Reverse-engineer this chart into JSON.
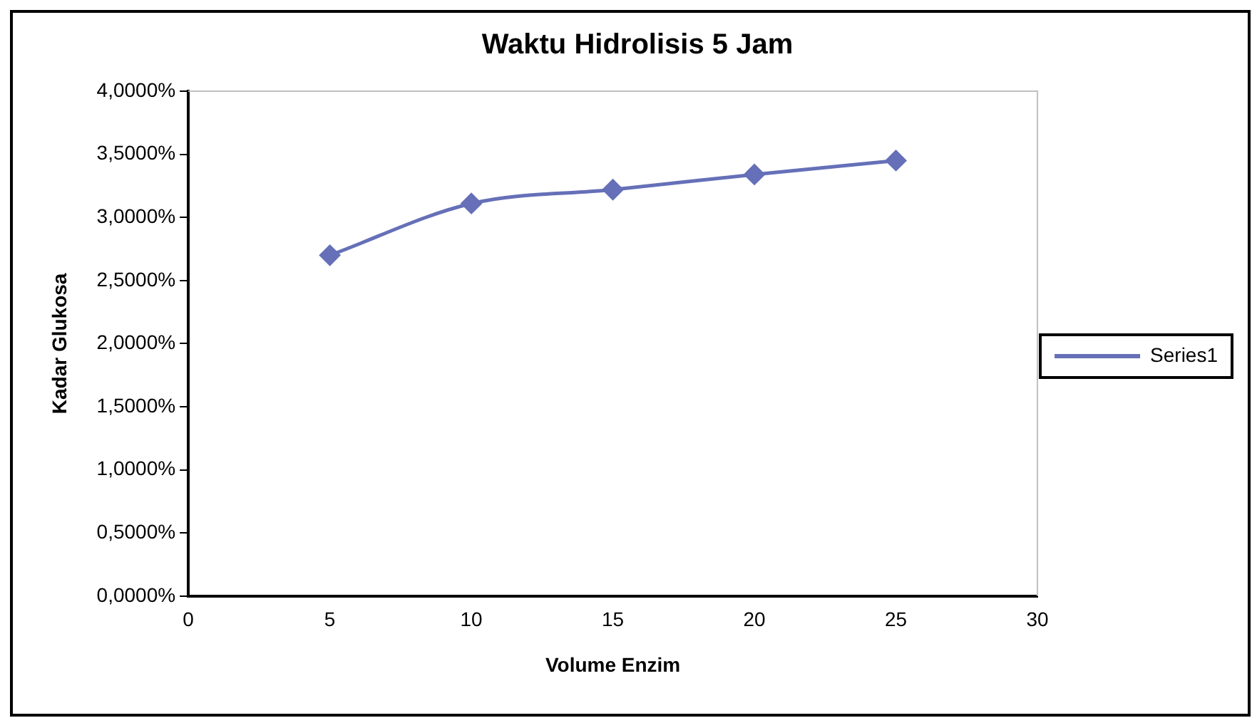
{
  "chart_data": {
    "type": "line",
    "title": "Waktu Hidrolisis 5 Jam",
    "xlabel": "Volume Enzim",
    "ylabel": "Kadar Glukosa",
    "x": [
      5,
      10,
      15,
      20,
      25
    ],
    "series": [
      {
        "name": "Series1",
        "color": "#6670b8",
        "values": [
          2.7,
          3.11,
          3.22,
          3.34,
          3.45
        ]
      }
    ],
    "xlim": [
      0,
      30
    ],
    "xticks": [
      0,
      5,
      10,
      15,
      20,
      25,
      30
    ],
    "ylim": [
      0,
      4
    ],
    "yticks": [
      {
        "value": 0,
        "label": "0,0000%"
      },
      {
        "value": 0.5,
        "label": "0,5000%"
      },
      {
        "value": 1,
        "label": "1,0000%"
      },
      {
        "value": 1.5,
        "label": "1,5000%"
      },
      {
        "value": 2,
        "label": "2,0000%"
      },
      {
        "value": 2.5,
        "label": "2,5000%"
      },
      {
        "value": 3,
        "label": "3,0000%"
      },
      {
        "value": 3.5,
        "label": "3,5000%"
      },
      {
        "value": 4,
        "label": "4,0000%"
      }
    ],
    "grid": false,
    "legend": "right",
    "marker": "diamond",
    "line_style": "solid"
  }
}
